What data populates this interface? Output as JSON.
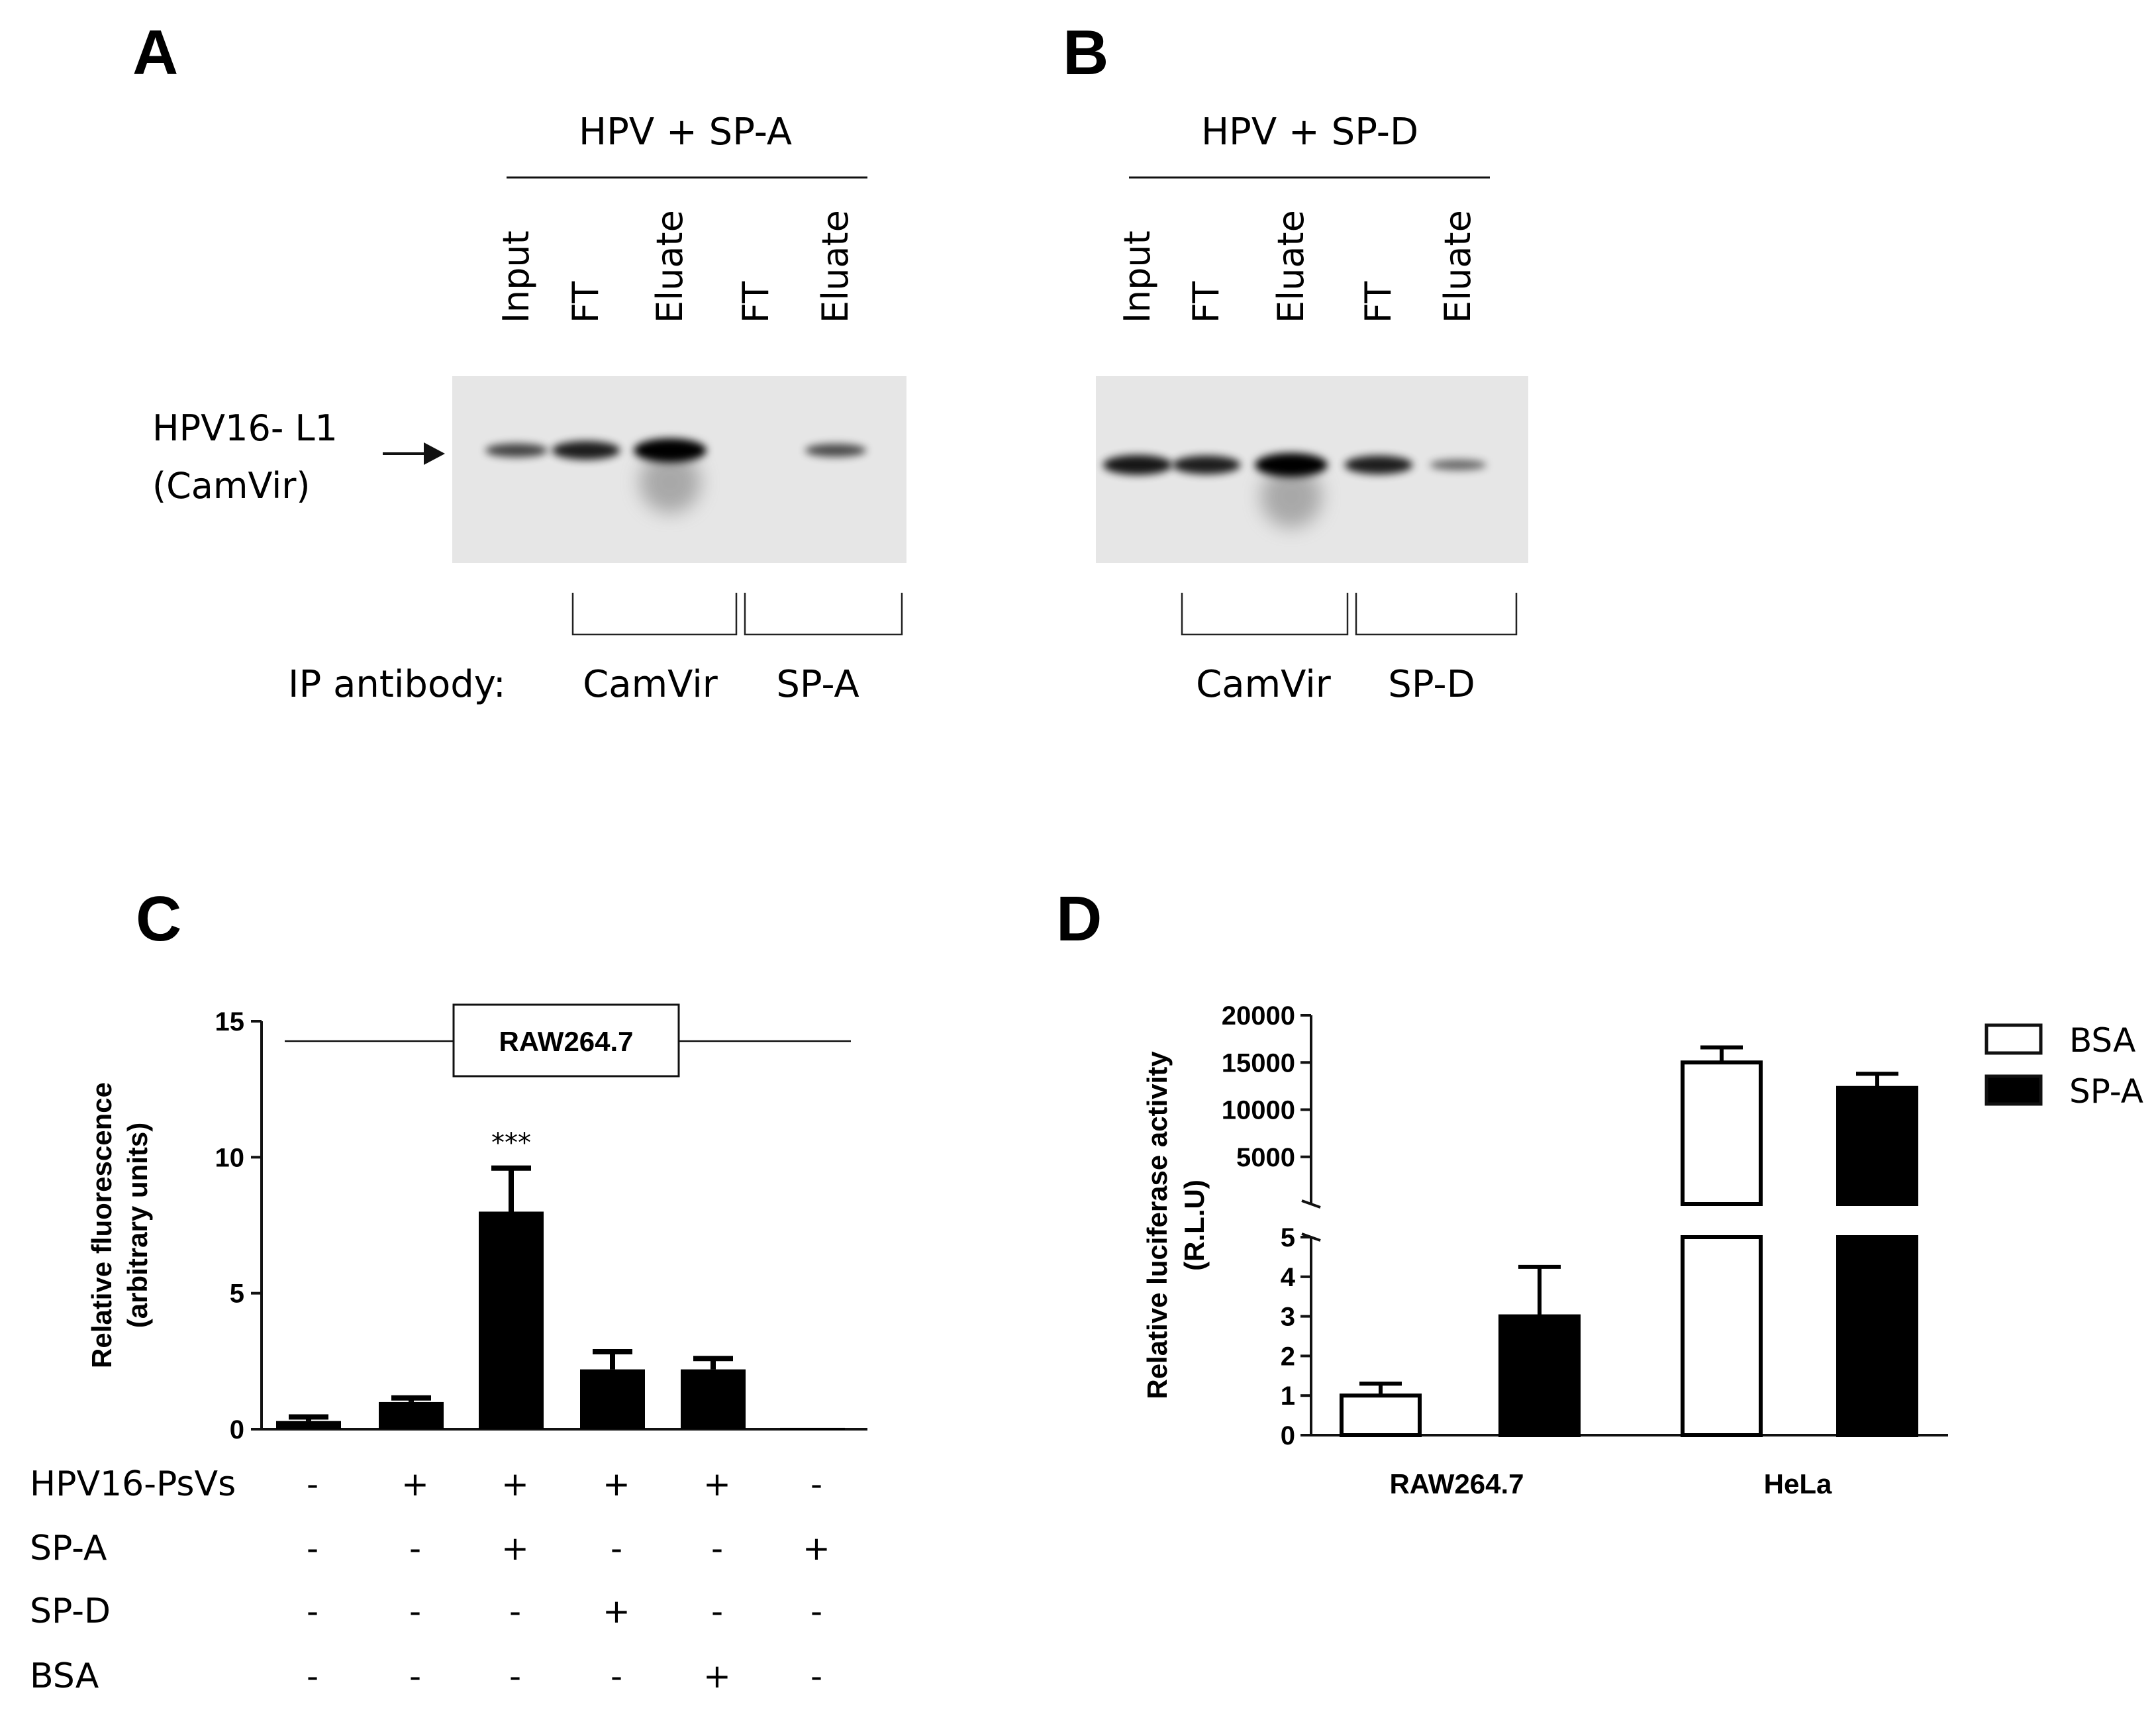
{
  "panels": {
    "A": {
      "label": "A",
      "group_label": "HPV + SP-A",
      "lanes": [
        "Input",
        "FT",
        "Eluate",
        "FT",
        "Eluate"
      ],
      "band_label_line1": "HPV16- L1",
      "band_label_line2": "(CamVir)",
      "band_intensity": [
        0.55,
        0.8,
        1.0,
        0.0,
        0.5
      ],
      "ip_label": "IP antibody:",
      "ip_groups": [
        "CamVir",
        "SP-A"
      ]
    },
    "B": {
      "label": "B",
      "group_label": "HPV + SP-D",
      "lanes": [
        "Input",
        "FT",
        "Eluate",
        "FT",
        "Eluate"
      ],
      "band_intensity": [
        0.85,
        0.8,
        1.0,
        0.8,
        0.3
      ],
      "ip_groups": [
        "CamVir",
        "SP-D"
      ]
    },
    "C": {
      "label": "C"
    },
    "D": {
      "label": "D"
    }
  },
  "chart_data": [
    {
      "panel": "C",
      "type": "bar",
      "ylabel_line1": "Relative fluorescence",
      "ylabel_line2": "(arbitrary units)",
      "ylim": [
        0,
        15
      ],
      "yticks": [
        "0",
        "5",
        "10",
        "15"
      ],
      "inset_label": "RAW264.7",
      "values": [
        0.3,
        1.0,
        8.0,
        2.2,
        2.2,
        0.05
      ],
      "errors": [
        0.15,
        0.15,
        1.6,
        0.65,
        0.4,
        0.0
      ],
      "annotations": [
        {
          "bar": 2,
          "text": "***"
        }
      ],
      "conditions": [
        {
          "name": "HPV16-PsVs",
          "values": [
            "-",
            "+",
            "+",
            "+",
            "+",
            "-"
          ]
        },
        {
          "name": "SP-A",
          "values": [
            "-",
            "-",
            "+",
            "-",
            "-",
            "+"
          ]
        },
        {
          "name": "SP-D",
          "values": [
            "-",
            "-",
            "-",
            "+",
            "-",
            "-"
          ]
        },
        {
          "name": "BSA",
          "values": [
            "-",
            "-",
            "-",
            "-",
            "+",
            "-"
          ]
        }
      ],
      "bar_color": "#000000"
    },
    {
      "panel": "D",
      "type": "bar",
      "ylabel_line1": "Relative luciferase activity",
      "ylabel_line2": "(R.L.U)",
      "y_break": true,
      "lower_ylim": [
        0,
        5
      ],
      "lower_yticks": [
        "0",
        "1",
        "2",
        "3",
        "4",
        "5"
      ],
      "upper_ylim": [
        0,
        20000
      ],
      "upper_yticks": [
        "5000",
        "10000",
        "15000",
        "20000"
      ],
      "categories": [
        "RAW264.7",
        "HeLa"
      ],
      "series": [
        {
          "name": "BSA",
          "values": [
            1.0,
            15000
          ],
          "errors": [
            0.3,
            1600
          ],
          "fill": "#ffffff"
        },
        {
          "name": "SP-A",
          "values": [
            3.0,
            12300
          ],
          "errors": [
            1.25,
            1500
          ],
          "fill": "#000000"
        }
      ],
      "legend": "top-right"
    }
  ]
}
